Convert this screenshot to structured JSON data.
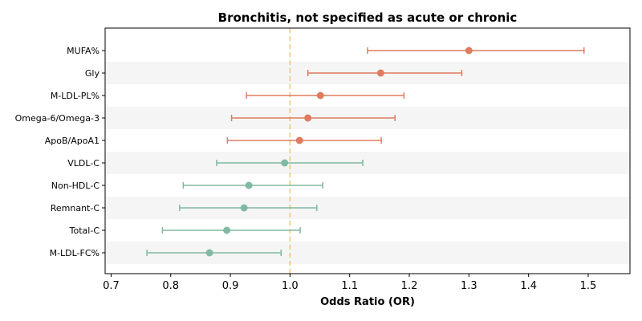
{
  "chart_data": {
    "type": "forest",
    "title": "Bronchitis, not specified as acute or chronic",
    "xlabel": "Odds Ratio (OR)",
    "xlim": [
      0.69,
      1.57
    ],
    "xticks": [
      "0.7",
      "0.8",
      "0.9",
      "1.0",
      "1.1",
      "1.2",
      "1.3",
      "1.4",
      "1.5"
    ],
    "xtick_values": [
      0.7,
      0.8,
      0.9,
      1.0,
      1.1,
      1.2,
      1.3,
      1.4,
      1.5
    ],
    "reference_line": 1.0,
    "reference_color": "#f5c26b",
    "colors": {
      "risk": "#e07b5f",
      "protective": "#80b9a1",
      "band": "#f5f5f5"
    },
    "rows": [
      {
        "label": "MUFA%",
        "or": 1.3,
        "lo": 1.13,
        "hi": 1.493,
        "group": "risk"
      },
      {
        "label": "Gly",
        "or": 1.152,
        "lo": 1.03,
        "hi": 1.288,
        "group": "risk"
      },
      {
        "label": "M-LDL-PL%",
        "or": 1.051,
        "lo": 0.927,
        "hi": 1.191,
        "group": "risk"
      },
      {
        "label": "Omega-6/Omega-3",
        "or": 1.03,
        "lo": 0.902,
        "hi": 1.176,
        "group": "risk"
      },
      {
        "label": "ApoB/ApoA1",
        "or": 1.016,
        "lo": 0.895,
        "hi": 1.153,
        "group": "risk"
      },
      {
        "label": "VLDL-C",
        "or": 0.991,
        "lo": 0.877,
        "hi": 1.122,
        "group": "protective"
      },
      {
        "label": "Non-HDL-C",
        "or": 0.931,
        "lo": 0.821,
        "hi": 1.055,
        "group": "protective"
      },
      {
        "label": "Remnant-C",
        "or": 0.923,
        "lo": 0.815,
        "hi": 1.045,
        "group": "protective"
      },
      {
        "label": "Total-C",
        "or": 0.894,
        "lo": 0.786,
        "hi": 1.017,
        "group": "protective"
      },
      {
        "label": "M-LDL-FC%",
        "or": 0.865,
        "lo": 0.76,
        "hi": 0.985,
        "group": "protective"
      }
    ]
  }
}
